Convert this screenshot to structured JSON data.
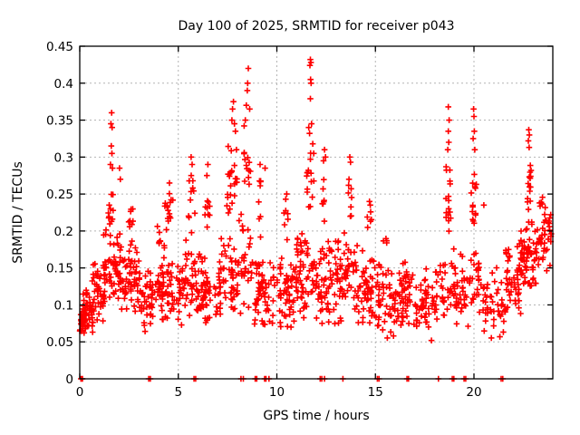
{
  "window": {
    "title": "Day 100 of 2025, SRMTID for receiver p043"
  },
  "colors": {
    "marker": "#ff0000",
    "grid": "#b4b4b4",
    "border": "#000000",
    "background": "#ffffff",
    "text": "#000000"
  },
  "chart_data": {
    "type": "scatter",
    "title": "Day 100 of 2025, SRMTID for receiver p043",
    "xlabel": "GPS time / hours",
    "ylabel": "SRMTID / TECUs",
    "xlim": [
      0,
      24
    ],
    "ylim": [
      0,
      0.45
    ],
    "grid": true,
    "legend": "none",
    "marker": "plus",
    "marker_color": "#ff0000",
    "x_ticks": [
      0,
      5,
      10,
      15,
      20
    ],
    "x_tick_labels": [
      "0",
      "5",
      "10",
      "15",
      "20"
    ],
    "y_ticks": [
      0,
      0.05,
      0.1,
      0.15,
      0.2,
      0.25,
      0.3,
      0.35,
      0.4,
      0.45
    ],
    "y_tick_labels": [
      "0",
      "0.05",
      "0.1",
      "0.15",
      "0.2",
      "0.25",
      "0.3",
      "0.35",
      "0.4",
      "0.45"
    ],
    "seed": 1337,
    "clusters_comment": "dense cloud read off the plot: [xStart,xEnd,yMin,yMax,count] in data units",
    "clusters": [
      [
        0.0,
        0.35,
        0.055,
        0.105,
        25
      ],
      [
        0.1,
        0.7,
        0.06,
        0.13,
        40
      ],
      [
        0.6,
        1.3,
        0.07,
        0.17,
        50
      ],
      [
        1.2,
        2.1,
        0.09,
        0.225,
        60
      ],
      [
        1.45,
        1.7,
        0.17,
        0.26,
        12
      ],
      [
        2.1,
        3.1,
        0.08,
        0.19,
        60
      ],
      [
        2.45,
        2.7,
        0.19,
        0.235,
        8
      ],
      [
        3.1,
        4.1,
        0.06,
        0.165,
        55
      ],
      [
        3.85,
        4.1,
        0.165,
        0.21,
        7
      ],
      [
        4.1,
        5.0,
        0.07,
        0.185,
        50
      ],
      [
        4.3,
        4.75,
        0.195,
        0.255,
        15
      ],
      [
        5.0,
        6.0,
        0.07,
        0.19,
        55
      ],
      [
        5.5,
        5.85,
        0.195,
        0.285,
        11
      ],
      [
        6.0,
        7.0,
        0.065,
        0.185,
        55
      ],
      [
        6.35,
        6.6,
        0.19,
        0.27,
        9
      ],
      [
        7.0,
        8.0,
        0.075,
        0.2,
        55
      ],
      [
        7.45,
        8.0,
        0.2,
        0.33,
        22
      ],
      [
        8.0,
        8.85,
        0.08,
        0.24,
        35
      ],
      [
        8.3,
        8.7,
        0.24,
        0.36,
        13
      ],
      [
        8.85,
        10.0,
        0.055,
        0.175,
        60
      ],
      [
        9.0,
        9.25,
        0.18,
        0.28,
        8
      ],
      [
        10.0,
        11.0,
        0.06,
        0.18,
        58
      ],
      [
        10.35,
        10.6,
        0.18,
        0.235,
        6
      ],
      [
        11.0,
        12.0,
        0.07,
        0.22,
        58
      ],
      [
        11.5,
        11.95,
        0.22,
        0.33,
        14
      ],
      [
        12.0,
        13.0,
        0.065,
        0.2,
        58
      ],
      [
        12.3,
        12.5,
        0.2,
        0.29,
        7
      ],
      [
        13.0,
        14.0,
        0.07,
        0.2,
        55
      ],
      [
        13.55,
        13.8,
        0.2,
        0.28,
        7
      ],
      [
        14.0,
        15.0,
        0.06,
        0.19,
        55
      ],
      [
        14.55,
        14.8,
        0.19,
        0.23,
        5
      ],
      [
        15.0,
        16.0,
        0.05,
        0.17,
        52
      ],
      [
        15.4,
        15.6,
        0.17,
        0.205,
        4
      ],
      [
        16.0,
        17.0,
        0.06,
        0.165,
        52
      ],
      [
        17.0,
        18.0,
        0.05,
        0.155,
        48
      ],
      [
        18.0,
        19.2,
        0.06,
        0.18,
        52
      ],
      [
        18.55,
        18.85,
        0.185,
        0.3,
        16
      ],
      [
        19.2,
        20.4,
        0.07,
        0.185,
        48
      ],
      [
        19.85,
        20.15,
        0.19,
        0.3,
        14
      ],
      [
        20.4,
        21.6,
        0.05,
        0.155,
        45
      ],
      [
        21.6,
        22.4,
        0.08,
        0.185,
        48
      ],
      [
        22.3,
        23.3,
        0.115,
        0.225,
        70
      ],
      [
        22.7,
        22.95,
        0.225,
        0.31,
        14
      ],
      [
        23.3,
        23.97,
        0.125,
        0.255,
        42
      ]
    ],
    "outliers_comment": "individually visible high points [hour, TECUs]",
    "outliers": [
      [
        1.62,
        0.36
      ],
      [
        1.58,
        0.345
      ],
      [
        1.64,
        0.34
      ],
      [
        1.6,
        0.315
      ],
      [
        1.63,
        0.305
      ],
      [
        1.56,
        0.29
      ],
      [
        1.66,
        0.285
      ],
      [
        2.02,
        0.285
      ],
      [
        2.06,
        0.27
      ],
      [
        4.55,
        0.265
      ],
      [
        5.65,
        0.3
      ],
      [
        5.7,
        0.29
      ],
      [
        6.5,
        0.29
      ],
      [
        6.45,
        0.275
      ],
      [
        7.8,
        0.375
      ],
      [
        7.75,
        0.365
      ],
      [
        7.72,
        0.35
      ],
      [
        7.85,
        0.345
      ],
      [
        7.9,
        0.335
      ],
      [
        7.95,
        0.31
      ],
      [
        8.55,
        0.42
      ],
      [
        8.52,
        0.4
      ],
      [
        8.5,
        0.39
      ],
      [
        8.45,
        0.37
      ],
      [
        8.62,
        0.365
      ],
      [
        8.4,
        0.35
      ],
      [
        9.15,
        0.29
      ],
      [
        9.4,
        0.285
      ],
      [
        10.5,
        0.25
      ],
      [
        10.45,
        0.243
      ],
      [
        11.7,
        0.432
      ],
      [
        11.73,
        0.428
      ],
      [
        11.68,
        0.424
      ],
      [
        11.71,
        0.405
      ],
      [
        11.74,
        0.4
      ],
      [
        11.7,
        0.379
      ],
      [
        11.76,
        0.345
      ],
      [
        11.62,
        0.34
      ],
      [
        11.66,
        0.332
      ],
      [
        11.82,
        0.318
      ],
      [
        11.87,
        0.305
      ],
      [
        12.42,
        0.31
      ],
      [
        12.47,
        0.3
      ],
      [
        12.37,
        0.295
      ],
      [
        13.7,
        0.3
      ],
      [
        13.74,
        0.293
      ],
      [
        13.66,
        0.27
      ],
      [
        14.7,
        0.24
      ],
      [
        14.74,
        0.235
      ],
      [
        18.7,
        0.368
      ],
      [
        18.74,
        0.35
      ],
      [
        18.7,
        0.335
      ],
      [
        18.72,
        0.32
      ],
      [
        18.67,
        0.31
      ],
      [
        19.98,
        0.365
      ],
      [
        20.0,
        0.355
      ],
      [
        20.02,
        0.335
      ],
      [
        19.96,
        0.325
      ],
      [
        20.04,
        0.31
      ],
      [
        20.5,
        0.235
      ],
      [
        22.78,
        0.337
      ],
      [
        22.81,
        0.33
      ],
      [
        22.76,
        0.322
      ],
      [
        22.8,
        0.313
      ]
    ],
    "zero_points_comment": "red marks sitting on the x-axis (value 0) at these hours",
    "zero_points": [
      0.06,
      0.1,
      0.14,
      3.5,
      3.58,
      5.8,
      5.88,
      8.18,
      8.3,
      8.9,
      8.98,
      9.38,
      9.45,
      9.6,
      12.2,
      12.28,
      12.42,
      13.35,
      15.1,
      15.18,
      16.6,
      16.68,
      18.2,
      18.9,
      18.98,
      19.5,
      19.58,
      21.38,
      21.46
    ]
  }
}
